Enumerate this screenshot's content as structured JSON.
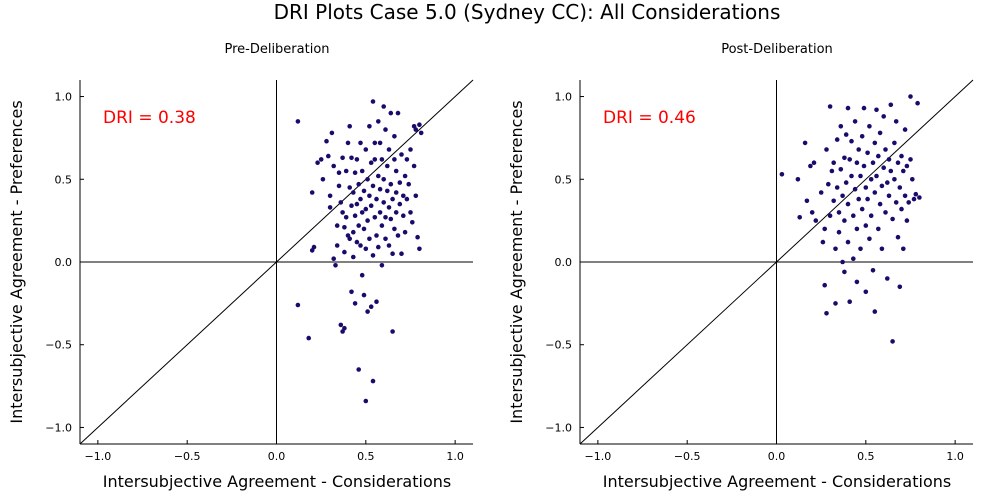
{
  "title": "DRI Plots Case 5.0 (Sydney CC): All Considerations",
  "colors": {
    "points": "#1a0a6b",
    "annotation": "#ff0000",
    "lines": "#000000"
  },
  "chart_data": [
    {
      "type": "scatter",
      "title": "Pre-Deliberation",
      "xlabel": "Intersubjective Agreement - Considerations",
      "ylabel": "Intersubjective Agreement - Preferences",
      "xlim": [
        -1.1,
        1.1
      ],
      "ylim": [
        -1.1,
        1.1
      ],
      "xticks": [
        -1.0,
        -0.5,
        0.0,
        0.5,
        1.0
      ],
      "yticks": [
        -1.0,
        -0.5,
        0.0,
        0.5,
        1.0
      ],
      "xtick_labels": [
        "−1.0",
        "−0.5",
        "0.0",
        "0.5",
        "1.0"
      ],
      "ytick_labels": [
        "−1.0",
        "−0.5",
        "0.0",
        "0.5",
        "1.0"
      ],
      "annotation": "DRI = 0.38",
      "reference_lines": [
        "x=0",
        "y=0",
        "y=x"
      ],
      "grid": false,
      "points": [
        [
          0.12,
          0.85
        ],
        [
          0.12,
          -0.26
        ],
        [
          0.18,
          -0.46
        ],
        [
          0.2,
          0.07
        ],
        [
          0.21,
          0.09
        ],
        [
          0.2,
          0.42
        ],
        [
          0.23,
          0.6
        ],
        [
          0.25,
          0.62
        ],
        [
          0.26,
          0.5
        ],
        [
          0.28,
          0.73
        ],
        [
          0.29,
          0.64
        ],
        [
          0.3,
          0.4
        ],
        [
          0.3,
          0.33
        ],
        [
          0.31,
          0.78
        ],
        [
          0.32,
          0.58
        ],
        [
          0.32,
          0.02
        ],
        [
          0.33,
          -0.02
        ],
        [
          0.34,
          0.22
        ],
        [
          0.34,
          0.1
        ],
        [
          0.35,
          0.54
        ],
        [
          0.35,
          0.46
        ],
        [
          0.36,
          0.36
        ],
        [
          0.36,
          -0.38
        ],
        [
          0.37,
          0.63
        ],
        [
          0.37,
          0.3
        ],
        [
          0.37,
          -0.42
        ],
        [
          0.38,
          0.06
        ],
        [
          0.38,
          0.21
        ],
        [
          0.38,
          -0.4
        ],
        [
          0.39,
          0.55
        ],
        [
          0.39,
          0.27
        ],
        [
          0.4,
          0.16
        ],
        [
          0.4,
          0.72
        ],
        [
          0.41,
          0.45
        ],
        [
          0.41,
          0.14
        ],
        [
          0.41,
          0.82
        ],
        [
          0.42,
          0.63
        ],
        [
          0.42,
          0.34
        ],
        [
          0.42,
          -0.18
        ],
        [
          0.43,
          0.42
        ],
        [
          0.43,
          0.18
        ],
        [
          0.43,
          0.03
        ],
        [
          0.44,
          0.28
        ],
        [
          0.44,
          0.54
        ],
        [
          0.44,
          -0.25
        ],
        [
          0.45,
          0.35
        ],
        [
          0.45,
          0.12
        ],
        [
          0.45,
          0.62
        ],
        [
          0.46,
          0.47
        ],
        [
          0.46,
          -0.65
        ],
        [
          0.46,
          0.22
        ],
        [
          0.47,
          0.38
        ],
        [
          0.47,
          0.1
        ],
        [
          0.47,
          0.72
        ],
        [
          0.48,
          0.3
        ],
        [
          0.48,
          0.55
        ],
        [
          0.48,
          -0.08
        ],
        [
          0.49,
          0.43
        ],
        [
          0.49,
          0.2
        ],
        [
          0.49,
          -0.2
        ],
        [
          0.5,
          0.32
        ],
        [
          0.5,
          0.68
        ],
        [
          0.5,
          0.08
        ],
        [
          0.5,
          -0.84
        ],
        [
          0.51,
          0.5
        ],
        [
          0.51,
          0.25
        ],
        [
          0.51,
          -0.3
        ],
        [
          0.52,
          0.82
        ],
        [
          0.52,
          0.4
        ],
        [
          0.52,
          0.14
        ],
        [
          0.53,
          0.6
        ],
        [
          0.53,
          0.34
        ],
        [
          0.53,
          -0.27
        ],
        [
          0.54,
          0.97
        ],
        [
          0.54,
          0.46
        ],
        [
          0.54,
          0.04
        ],
        [
          0.54,
          -0.72
        ],
        [
          0.55,
          0.72
        ],
        [
          0.55,
          0.27
        ],
        [
          0.55,
          0.62
        ],
        [
          0.56,
          0.38
        ],
        [
          0.56,
          0.16
        ],
        [
          0.56,
          -0.24
        ],
        [
          0.57,
          0.52
        ],
        [
          0.57,
          0.85
        ],
        [
          0.57,
          0.09
        ],
        [
          0.58,
          0.44
        ],
        [
          0.58,
          0.3
        ],
        [
          0.58,
          0.72
        ],
        [
          0.59,
          0.22
        ],
        [
          0.59,
          -0.02
        ],
        [
          0.59,
          0.62
        ],
        [
          0.6,
          0.36
        ],
        [
          0.6,
          0.5
        ],
        [
          0.6,
          0.94
        ],
        [
          0.61,
          0.27
        ],
        [
          0.61,
          0.14
        ],
        [
          0.61,
          0.8
        ],
        [
          0.62,
          0.43
        ],
        [
          0.62,
          0.58
        ],
        [
          0.63,
          0.33
        ],
        [
          0.63,
          0.1
        ],
        [
          0.63,
          0.68
        ],
        [
          0.64,
          0.9
        ],
        [
          0.64,
          0.26
        ],
        [
          0.64,
          0.47
        ],
        [
          0.65,
          0.38
        ],
        [
          0.65,
          0.05
        ],
        [
          0.65,
          -0.42
        ],
        [
          0.66,
          0.62
        ],
        [
          0.66,
          0.2
        ],
        [
          0.66,
          0.76
        ],
        [
          0.67,
          0.42
        ],
        [
          0.67,
          0.3
        ],
        [
          0.67,
          0.55
        ],
        [
          0.68,
          0.9
        ],
        [
          0.68,
          0.16
        ],
        [
          0.69,
          0.35
        ],
        [
          0.69,
          0.48
        ],
        [
          0.7,
          0.05
        ],
        [
          0.7,
          0.65
        ],
        [
          0.71,
          0.28
        ],
        [
          0.71,
          0.4
        ],
        [
          0.72,
          0.52
        ],
        [
          0.72,
          0.18
        ],
        [
          0.73,
          0.62
        ],
        [
          0.73,
          0.38
        ],
        [
          0.74,
          0.47
        ],
        [
          0.75,
          0.3
        ],
        [
          0.75,
          0.68
        ],
        [
          0.76,
          0.24
        ],
        [
          0.77,
          0.58
        ],
        [
          0.77,
          0.82
        ],
        [
          0.78,
          0.4
        ],
        [
          0.78,
          0.8
        ],
        [
          0.79,
          0.15
        ],
        [
          0.8,
          0.08
        ],
        [
          0.8,
          0.83
        ],
        [
          0.81,
          0.78
        ]
      ]
    },
    {
      "type": "scatter",
      "title": "Post-Deliberation",
      "xlabel": "Intersubjective Agreement - Considerations",
      "ylabel": "Intersubjective Agreement - Preferences",
      "xlim": [
        -1.1,
        1.1
      ],
      "ylim": [
        -1.1,
        1.1
      ],
      "xticks": [
        -1.0,
        -0.5,
        0.0,
        0.5,
        1.0
      ],
      "yticks": [
        -1.0,
        -0.5,
        0.0,
        0.5,
        1.0
      ],
      "xtick_labels": [
        "−1.0",
        "−0.5",
        "0.0",
        "0.5",
        "1.0"
      ],
      "ytick_labels": [
        "−1.0",
        "−0.5",
        "0.0",
        "0.5",
        "1.0"
      ],
      "annotation": "DRI = 0.46",
      "reference_lines": [
        "x=0",
        "y=0",
        "y=x"
      ],
      "grid": false,
      "points": [
        [
          0.03,
          0.53
        ],
        [
          0.12,
          0.5
        ],
        [
          0.13,
          0.27
        ],
        [
          0.16,
          0.72
        ],
        [
          0.17,
          0.37
        ],
        [
          0.19,
          0.58
        ],
        [
          0.2,
          0.3
        ],
        [
          0.21,
          0.6
        ],
        [
          0.22,
          0.25
        ],
        [
          0.25,
          0.42
        ],
        [
          0.26,
          0.12
        ],
        [
          0.27,
          0.2
        ],
        [
          0.27,
          -0.14
        ],
        [
          0.28,
          0.68
        ],
        [
          0.28,
          -0.31
        ],
        [
          0.29,
          0.47
        ],
        [
          0.3,
          0.94
        ],
        [
          0.3,
          0.28
        ],
        [
          0.31,
          0.55
        ],
        [
          0.32,
          0.37
        ],
        [
          0.32,
          0.6
        ],
        [
          0.33,
          0.08
        ],
        [
          0.33,
          -0.25
        ],
        [
          0.34,
          0.74
        ],
        [
          0.34,
          0.45
        ],
        [
          0.35,
          0.3
        ],
        [
          0.35,
          0.18
        ],
        [
          0.36,
          0.82
        ],
        [
          0.36,
          0.56
        ],
        [
          0.37,
          0.4
        ],
        [
          0.37,
          0.0
        ],
        [
          0.38,
          0.63
        ],
        [
          0.38,
          0.25
        ],
        [
          0.38,
          -0.06
        ],
        [
          0.39,
          0.77
        ],
        [
          0.39,
          0.48
        ],
        [
          0.4,
          0.93
        ],
        [
          0.4,
          0.35
        ],
        [
          0.4,
          0.12
        ],
        [
          0.41,
          0.62
        ],
        [
          0.41,
          -0.24
        ],
        [
          0.42,
          0.52
        ],
        [
          0.42,
          0.73
        ],
        [
          0.43,
          0.28
        ],
        [
          0.43,
          0.02
        ],
        [
          0.44,
          0.44
        ],
        [
          0.44,
          0.85
        ],
        [
          0.45,
          0.6
        ],
        [
          0.45,
          0.2
        ],
        [
          0.45,
          -0.12
        ],
        [
          0.46,
          0.38
        ],
        [
          0.46,
          0.68
        ],
        [
          0.47,
          0.52
        ],
        [
          0.47,
          0.08
        ],
        [
          0.48,
          0.76
        ],
        [
          0.48,
          0.32
        ],
        [
          0.49,
          0.93
        ],
        [
          0.49,
          0.58
        ],
        [
          0.5,
          0.45
        ],
        [
          0.5,
          0.22
        ],
        [
          0.5,
          -0.18
        ],
        [
          0.51,
          0.66
        ],
        [
          0.51,
          0.38
        ],
        [
          0.52,
          0.14
        ],
        [
          0.52,
          0.82
        ],
        [
          0.53,
          0.5
        ],
        [
          0.53,
          0.28
        ],
        [
          0.54,
          0.6
        ],
        [
          0.54,
          -0.05
        ],
        [
          0.55,
          0.72
        ],
        [
          0.55,
          0.42
        ],
        [
          0.55,
          -0.3
        ],
        [
          0.56,
          0.92
        ],
        [
          0.56,
          0.52
        ],
        [
          0.57,
          0.2
        ],
        [
          0.57,
          0.64
        ],
        [
          0.58,
          0.35
        ],
        [
          0.58,
          0.78
        ],
        [
          0.59,
          0.46
        ],
        [
          0.59,
          0.08
        ],
        [
          0.6,
          0.57
        ],
        [
          0.6,
          0.88
        ],
        [
          0.61,
          0.3
        ],
        [
          0.61,
          0.68
        ],
        [
          0.62,
          0.48
        ],
        [
          0.62,
          -0.1
        ],
        [
          0.63,
          0.62
        ],
        [
          0.63,
          0.4
        ],
        [
          0.64,
          0.95
        ],
        [
          0.64,
          0.55
        ],
        [
          0.65,
          0.26
        ],
        [
          0.65,
          -0.48
        ],
        [
          0.66,
          0.72
        ],
        [
          0.66,
          0.5
        ],
        [
          0.67,
          0.85
        ],
        [
          0.67,
          0.36
        ],
        [
          0.68,
          0.6
        ],
        [
          0.68,
          0.15
        ],
        [
          0.69,
          0.45
        ],
        [
          0.69,
          -0.15
        ],
        [
          0.7,
          0.64
        ],
        [
          0.7,
          0.32
        ],
        [
          0.71,
          0.55
        ],
        [
          0.71,
          0.08
        ],
        [
          0.72,
          0.4
        ],
        [
          0.72,
          0.8
        ],
        [
          0.73,
          0.58
        ],
        [
          0.73,
          0.25
        ],
        [
          0.74,
          0.36
        ],
        [
          0.75,
          1.0
        ],
        [
          0.75,
          0.62
        ],
        [
          0.76,
          0.5
        ],
        [
          0.77,
          0.38
        ],
        [
          0.78,
          0.41
        ],
        [
          0.79,
          0.96
        ],
        [
          0.8,
          0.39
        ]
      ]
    }
  ]
}
